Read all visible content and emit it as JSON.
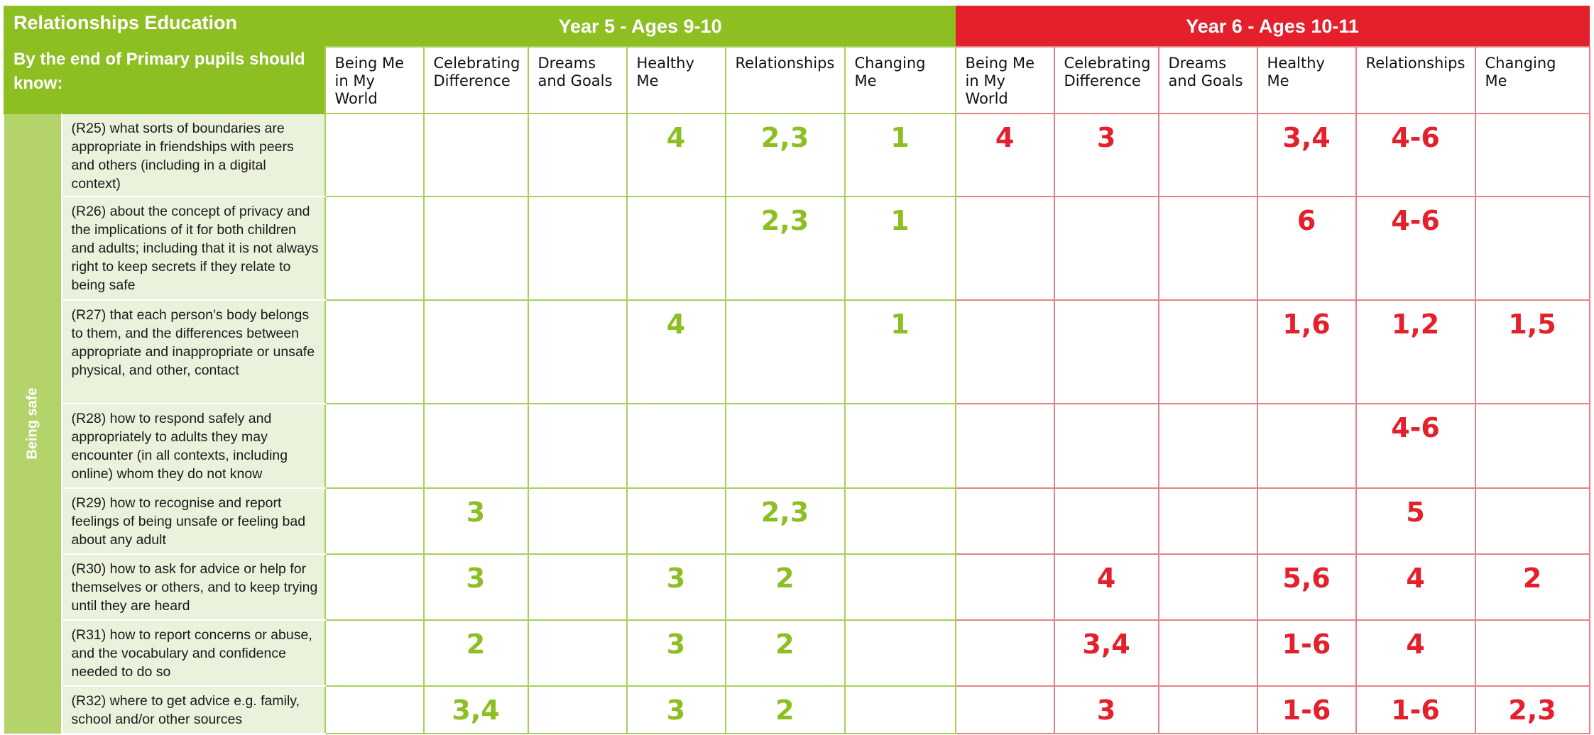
{
  "title": "Relationships Education",
  "subtitle": "By the end of Primary pupils should know:",
  "side_label": "Being safe",
  "year5": {
    "label": "Year 5 - Ages 9-10",
    "color": "#8dbe22",
    "columns": [
      "Being Me in My World",
      "Celebrating Difference",
      "Dreams and Goals",
      "Healthy Me",
      "Relationships",
      "Changing Me"
    ]
  },
  "year6": {
    "label": "Year 6 - Ages 10-11",
    "color": "#e3202b",
    "columns": [
      "Being Me in My World",
      "Celebrating Difference",
      "Dreams and Goals",
      "Healthy Me",
      "Relationships",
      "Changing Me"
    ]
  },
  "rows": [
    {
      "statement": "(R25) what sorts of boundaries are appropriate in friendships with peers and others (including in a digital context)",
      "y5": [
        "",
        "",
        "",
        "4",
        "2,3",
        "1"
      ],
      "y6": [
        "4",
        "3",
        "",
        "3,4",
        "4-6",
        ""
      ]
    },
    {
      "statement": "(R26) about the concept of privacy and the implications of it for both children and adults; including that it is not always right to keep secrets if they relate to being safe",
      "y5": [
        "",
        "",
        "",
        "",
        "2,3",
        "1"
      ],
      "y6": [
        "",
        "",
        "",
        "6",
        "4-6",
        ""
      ]
    },
    {
      "statement": "(R27) that each person’s body belongs to them, and the differences between appropriate and inappropriate or unsafe physical, and other, contact",
      "y5": [
        "",
        "",
        "",
        "4",
        "",
        "1"
      ],
      "y6": [
        "",
        "",
        "",
        "1,6",
        "1,2",
        "1,5"
      ]
    },
    {
      "statement": "(R28) how to respond safely and appropriately to adults they may encounter (in all contexts, including online) whom they do not know",
      "y5": [
        "",
        "",
        "",
        "",
        "",
        ""
      ],
      "y6": [
        "",
        "",
        "",
        "",
        "4-6",
        ""
      ]
    },
    {
      "statement": "(R29) how to recognise and report feelings of being unsafe or feeling bad about any adult",
      "y5": [
        "",
        "3",
        "",
        "",
        "2,3",
        ""
      ],
      "y6": [
        "",
        "",
        "",
        "",
        "5",
        ""
      ]
    },
    {
      "statement": "(R30) how to ask for advice or help for themselves or others, and to keep trying until they are heard",
      "y5": [
        "",
        "3",
        "",
        "3",
        "2",
        ""
      ],
      "y6": [
        "",
        "4",
        "",
        "5,6",
        "4",
        "2"
      ]
    },
    {
      "statement": "(R31) how to report concerns or abuse, and the vocabulary and confidence needed to do so",
      "y5": [
        "",
        "2",
        "",
        "3",
        "2",
        ""
      ],
      "y6": [
        "",
        "3,4",
        "",
        "1-6",
        "4",
        ""
      ]
    },
    {
      "statement": "(R32) where to get advice e.g. family, school and/or other sources",
      "y5": [
        "",
        "3,4",
        "",
        "3",
        "2",
        ""
      ],
      "y6": [
        "",
        "3",
        "",
        "1-6",
        "1-6",
        "2,3"
      ]
    }
  ]
}
